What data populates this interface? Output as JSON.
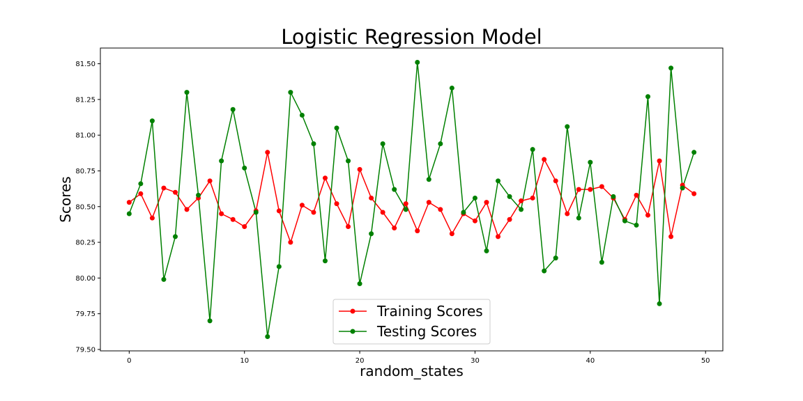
{
  "chart_data": {
    "type": "line",
    "title": "Logistic Regression Model",
    "xlabel": "random_states",
    "ylabel": "Scores",
    "xlim": [
      -2.5,
      51.5
    ],
    "ylim": [
      79.49,
      81.61
    ],
    "xticks": [
      0,
      10,
      20,
      30,
      40,
      50
    ],
    "yticks": [
      79.5,
      79.75,
      80.0,
      80.25,
      80.5,
      80.75,
      81.0,
      81.25,
      81.5
    ],
    "ytick_labels": [
      "79.50",
      "79.75",
      "80.00",
      "80.25",
      "80.50",
      "80.75",
      "81.00",
      "81.25",
      "81.50"
    ],
    "grid": false,
    "legend_position": "bottom-center",
    "x": [
      0,
      1,
      2,
      3,
      4,
      5,
      6,
      7,
      8,
      9,
      10,
      11,
      12,
      13,
      14,
      15,
      16,
      17,
      18,
      19,
      20,
      21,
      22,
      23,
      24,
      25,
      26,
      27,
      28,
      29,
      30,
      31,
      32,
      33,
      34,
      35,
      36,
      37,
      38,
      39,
      40,
      41,
      42,
      43,
      44,
      45,
      46,
      47,
      48,
      49
    ],
    "series": [
      {
        "name": "Training Scores",
        "color": "#ff0000",
        "marker": "circle",
        "values": [
          80.53,
          80.59,
          80.42,
          80.63,
          80.6,
          80.48,
          80.56,
          80.68,
          80.45,
          80.41,
          80.36,
          80.47,
          80.88,
          80.47,
          80.25,
          80.51,
          80.46,
          80.7,
          80.52,
          80.36,
          80.76,
          80.56,
          80.46,
          80.35,
          80.52,
          80.33,
          80.53,
          80.48,
          80.31,
          80.45,
          80.4,
          80.53,
          80.29,
          80.41,
          80.54,
          80.56,
          80.83,
          80.68,
          80.45,
          80.62,
          80.62,
          80.64,
          80.56,
          80.41,
          80.58,
          80.44,
          80.82,
          80.29,
          80.65,
          80.59
        ]
      },
      {
        "name": "Testing Scores",
        "color": "#008000",
        "marker": "circle",
        "values": [
          80.45,
          80.66,
          81.1,
          79.99,
          80.29,
          81.3,
          80.58,
          79.7,
          80.82,
          81.18,
          80.77,
          80.46,
          79.59,
          80.08,
          81.3,
          81.14,
          80.94,
          80.12,
          81.05,
          80.82,
          79.96,
          80.31,
          80.94,
          80.62,
          80.48,
          81.51,
          80.69,
          80.94,
          81.33,
          80.46,
          80.56,
          80.19,
          80.68,
          80.57,
          80.48,
          80.9,
          80.05,
          80.14,
          81.06,
          80.42,
          80.81,
          80.11,
          80.57,
          80.4,
          80.37,
          81.27,
          79.82,
          81.47,
          80.63,
          80.88
        ]
      }
    ]
  }
}
